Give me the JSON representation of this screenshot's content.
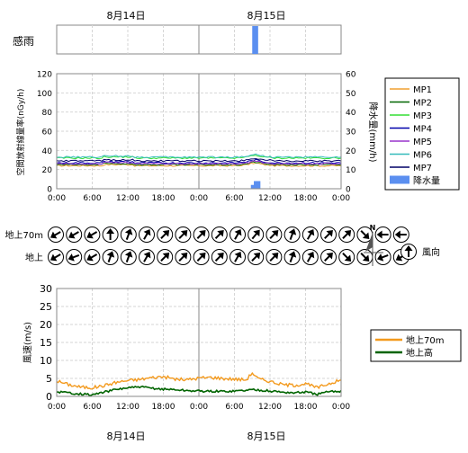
{
  "top_dates": {
    "left": "8月14日",
    "right": "8月15日"
  },
  "bottom_dates": {
    "left": "8月14日",
    "right": "8月15日"
  },
  "rain_sensor": {
    "label": "感雨",
    "active_intervals_hours": [
      [
        33,
        34
      ]
    ],
    "color": "#5b8ff0"
  },
  "compass": {
    "north_label": "N"
  },
  "chart_data": [
    {
      "type": "line",
      "ylabel": "空間放射線量率(nGy/h)",
      "y2label": "降水量(mm/h)",
      "ylim": [
        0,
        120
      ],
      "y2lim": [
        0,
        60
      ],
      "yticks": [
        0,
        20,
        40,
        60,
        80,
        100,
        120
      ],
      "y2ticks": [
        0,
        10,
        20,
        30,
        40,
        50,
        60
      ],
      "x_tick_labels": [
        "0:00",
        "6:00",
        "12:00",
        "18:00",
        "0:00",
        "6:00",
        "12:00",
        "18:00",
        "0:00"
      ],
      "grid": true,
      "legend_position": "right",
      "series": [
        {
          "name": "MP1",
          "color": "#f0a030",
          "base": 24
        },
        {
          "name": "MP2",
          "color": "#006400",
          "base": 25
        },
        {
          "name": "MP3",
          "color": "#33dd33",
          "base": 32
        },
        {
          "name": "MP4",
          "color": "#0000aa",
          "base": 27
        },
        {
          "name": "MP5",
          "color": "#9933cc",
          "base": 26
        },
        {
          "name": "MP6",
          "color": "#33bbbb",
          "base": 33
        },
        {
          "name": "MP7",
          "color": "#000066",
          "base": 29
        }
      ],
      "precipitation": {
        "name": "降水量",
        "color": "#5b8ff0",
        "bars": [
          {
            "hour": 33.0,
            "value": 2
          },
          {
            "hour": 33.5,
            "value": 4
          },
          {
            "hour": 34.0,
            "value": 4
          }
        ]
      }
    },
    {
      "type": "wind_direction",
      "legend_label": "風向",
      "rows": [
        {
          "name": "地上70m",
          "directions_deg": [
            240,
            240,
            240,
            0,
            20,
            30,
            45,
            45,
            45,
            45,
            30,
            40,
            45,
            20,
            30,
            45,
            45,
            135,
            270,
            270
          ]
        },
        {
          "name": "地上",
          "directions_deg": [
            240,
            250,
            240,
            20,
            20,
            30,
            45,
            45,
            45,
            45,
            30,
            45,
            45,
            20,
            30,
            45,
            135,
            135,
            250,
            240
          ]
        }
      ]
    },
    {
      "type": "line",
      "ylabel": "風速(m/s)",
      "ylim": [
        0,
        30
      ],
      "yticks": [
        0,
        5,
        10,
        15,
        20,
        25,
        30
      ],
      "x_tick_labels": [
        "0:00",
        "6:00",
        "12:00",
        "18:00",
        "0:00",
        "6:00",
        "12:00",
        "18:00",
        "0:00"
      ],
      "grid": true,
      "legend_position": "right",
      "series": [
        {
          "name": "地上70m",
          "color": "#f39a1e",
          "x_hours": [
            0,
            2,
            4,
            6,
            8,
            10,
            12,
            14,
            16,
            18,
            20,
            22,
            24,
            26,
            28,
            30,
            32,
            33,
            34,
            36,
            38,
            40,
            42,
            44,
            46,
            48
          ],
          "values": [
            4.3,
            3.3,
            2.6,
            2.4,
            3.0,
            3.9,
            4.4,
            4.7,
            5.2,
            5.5,
            4.8,
            4.6,
            5.1,
            5.3,
            5.0,
            4.8,
            4.6,
            6.6,
            4.9,
            4.2,
            3.3,
            3.1,
            3.5,
            2.4,
            3.6,
            4.5
          ]
        },
        {
          "name": "地上高",
          "color": "#006400",
          "x_hours": [
            0,
            2,
            4,
            6,
            8,
            10,
            12,
            14,
            16,
            18,
            20,
            22,
            24,
            26,
            28,
            30,
            32,
            33,
            34,
            36,
            38,
            40,
            42,
            44,
            46,
            48
          ],
          "values": [
            1.3,
            1.0,
            0.7,
            0.4,
            1.2,
            1.9,
            2.4,
            2.6,
            2.3,
            2.0,
            1.9,
            1.6,
            1.5,
            1.4,
            1.4,
            1.5,
            1.7,
            1.9,
            1.8,
            1.5,
            1.2,
            1.0,
            1.2,
            0.6,
            1.3,
            1.5
          ]
        }
      ]
    }
  ]
}
